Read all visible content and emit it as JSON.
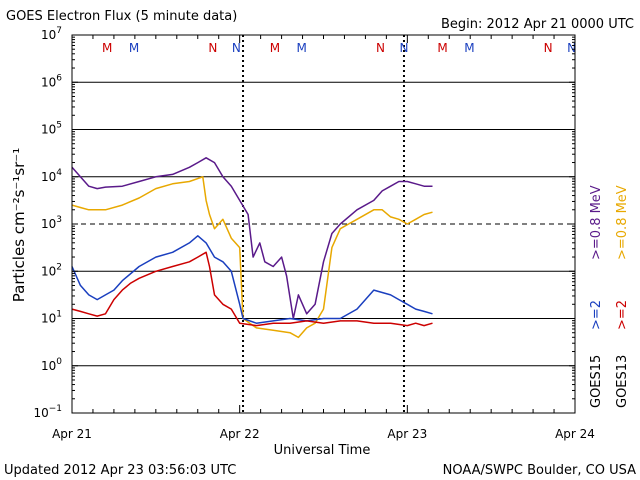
{
  "header": {
    "title": "GOES Electron Flux (5 minute data)",
    "begin": "Begin: 2012 Apr 21 0000 UTC"
  },
  "footer": {
    "updated": "Updated 2012 Apr 23 03:56:03 UTC",
    "credit": "NOAA/SWPC Boulder, CO USA"
  },
  "chart_data": {
    "type": "line",
    "title": "GOES Electron Flux (5 minute data)",
    "xlabel": "Universal Time",
    "ylabel": "Particles cm⁻²s⁻¹sr⁻¹",
    "yscale": "log",
    "ylim_exp": [
      -1,
      7
    ],
    "xlim_days": [
      0,
      3
    ],
    "x_ticks": [
      {
        "d": 0,
        "label": "Apr 21"
      },
      {
        "d": 1,
        "label": "Apr 22"
      },
      {
        "d": 2,
        "label": "Apr 23"
      },
      {
        "d": 3,
        "label": "Apr 24"
      }
    ],
    "y_tick_exps": [
      7,
      6,
      5,
      4,
      3,
      2,
      1,
      0,
      -1
    ],
    "grid": true,
    "alert_threshold_exp": 3,
    "markers": [
      {
        "d": 0.21,
        "text": "M",
        "color": "#cc0000"
      },
      {
        "d": 0.37,
        "text": "M",
        "color": "#1a3fbf"
      },
      {
        "d": 0.84,
        "text": "N",
        "color": "#cc0000"
      },
      {
        "d": 0.98,
        "text": "N",
        "color": "#1a3fbf"
      },
      {
        "d": 1.21,
        "text": "M",
        "color": "#cc0000"
      },
      {
        "d": 1.37,
        "text": "M",
        "color": "#1a3fbf"
      },
      {
        "d": 1.84,
        "text": "N",
        "color": "#cc0000"
      },
      {
        "d": 1.98,
        "text": "N",
        "color": "#1a3fbf"
      },
      {
        "d": 2.21,
        "text": "M",
        "color": "#cc0000"
      },
      {
        "d": 2.37,
        "text": "M",
        "color": "#1a3fbf"
      },
      {
        "d": 2.84,
        "text": "N",
        "color": "#cc0000"
      },
      {
        "d": 2.98,
        "text": "N",
        "color": "#1a3fbf"
      }
    ],
    "dashed_day_marks": [
      1.02,
      1.98
    ],
    "legend": {
      "placement": "right",
      "entries": [
        {
          "text": "GOES15",
          "color": "#000000"
        },
        {
          "text": ">=2",
          "color": "#1a3fbf"
        },
        {
          "text": ">=0.8 MeV",
          "color": "#5a1a8a"
        },
        {
          "text": "GOES13",
          "color": "#000000"
        },
        {
          "text": ">=2",
          "color": "#cc0000"
        },
        {
          "text": ">=0.8 MeV",
          "color": "#e8a800"
        }
      ]
    },
    "series": [
      {
        "color": "#5a1a8a",
        "x": [
          0,
          0.05,
          0.1,
          0.15,
          0.2,
          0.3,
          0.4,
          0.5,
          0.6,
          0.7,
          0.75,
          0.8,
          0.85,
          0.9,
          0.95,
          1.0,
          1.05,
          1.08,
          1.12,
          1.15,
          1.2,
          1.25,
          1.28,
          1.32,
          1.35,
          1.4,
          1.45,
          1.5,
          1.55,
          1.6,
          1.7,
          1.8,
          1.85,
          1.9,
          1.95,
          2.0,
          2.05,
          2.1,
          2.15
        ],
        "y": [
          4.2,
          4.0,
          3.8,
          3.75,
          3.78,
          3.8,
          3.9,
          4.0,
          4.05,
          4.2,
          4.3,
          4.4,
          4.3,
          4.0,
          3.8,
          3.5,
          3.2,
          2.3,
          2.6,
          2.2,
          2.1,
          2.3,
          1.9,
          1.0,
          1.5,
          1.1,
          1.3,
          2.2,
          2.8,
          3.0,
          3.3,
          3.5,
          3.7,
          3.8,
          3.9,
          3.9,
          3.85,
          3.8,
          3.8
        ]
      },
      {
        "color": "#e8a800",
        "x": [
          0,
          0.05,
          0.1,
          0.2,
          0.3,
          0.4,
          0.5,
          0.6,
          0.7,
          0.78,
          0.8,
          0.82,
          0.85,
          0.9,
          0.95,
          1.0,
          1.02,
          1.1,
          1.2,
          1.3,
          1.35,
          1.4,
          1.45,
          1.5,
          1.55,
          1.6,
          1.65,
          1.7,
          1.8,
          1.85,
          1.9,
          1.95,
          2.0,
          2.05,
          2.1,
          2.15
        ],
        "y": [
          3.4,
          3.35,
          3.3,
          3.3,
          3.4,
          3.55,
          3.75,
          3.85,
          3.9,
          4.0,
          3.5,
          3.2,
          2.9,
          3.1,
          2.7,
          2.5,
          1.0,
          0.8,
          0.75,
          0.7,
          0.6,
          0.8,
          0.9,
          1.2,
          2.5,
          2.9,
          3.0,
          3.1,
          3.3,
          3.3,
          3.15,
          3.1,
          3.0,
          3.1,
          3.2,
          3.25
        ]
      },
      {
        "color": "#1a3fbf",
        "x": [
          0,
          0.05,
          0.1,
          0.15,
          0.2,
          0.25,
          0.3,
          0.4,
          0.5,
          0.6,
          0.7,
          0.75,
          0.8,
          0.85,
          0.9,
          0.95,
          1.0,
          1.02,
          1.1,
          1.2,
          1.3,
          1.4,
          1.5,
          1.6,
          1.7,
          1.75,
          1.8,
          1.85,
          1.9,
          1.95,
          2.0,
          2.05,
          2.1,
          2.15
        ],
        "y": [
          2.1,
          1.7,
          1.5,
          1.4,
          1.5,
          1.6,
          1.8,
          2.1,
          2.3,
          2.4,
          2.6,
          2.75,
          2.6,
          2.3,
          2.2,
          2.0,
          1.3,
          1.0,
          0.9,
          0.95,
          1.0,
          0.95,
          1.0,
          1.0,
          1.2,
          1.4,
          1.6,
          1.55,
          1.5,
          1.4,
          1.3,
          1.2,
          1.15,
          1.1
        ]
      },
      {
        "color": "#cc0000",
        "x": [
          0,
          0.05,
          0.1,
          0.15,
          0.2,
          0.25,
          0.3,
          0.35,
          0.4,
          0.5,
          0.6,
          0.7,
          0.75,
          0.8,
          0.82,
          0.85,
          0.9,
          0.95,
          1.0,
          1.1,
          1.2,
          1.3,
          1.4,
          1.5,
          1.6,
          1.7,
          1.8,
          1.9,
          2.0,
          2.05,
          2.1,
          2.15
        ],
        "y": [
          1.2,
          1.15,
          1.1,
          1.05,
          1.1,
          1.4,
          1.6,
          1.75,
          1.85,
          2.0,
          2.1,
          2.2,
          2.3,
          2.4,
          2.1,
          1.5,
          1.3,
          1.2,
          0.9,
          0.85,
          0.9,
          0.9,
          0.95,
          0.9,
          0.95,
          0.95,
          0.9,
          0.9,
          0.85,
          0.9,
          0.85,
          0.9
        ]
      }
    ]
  }
}
